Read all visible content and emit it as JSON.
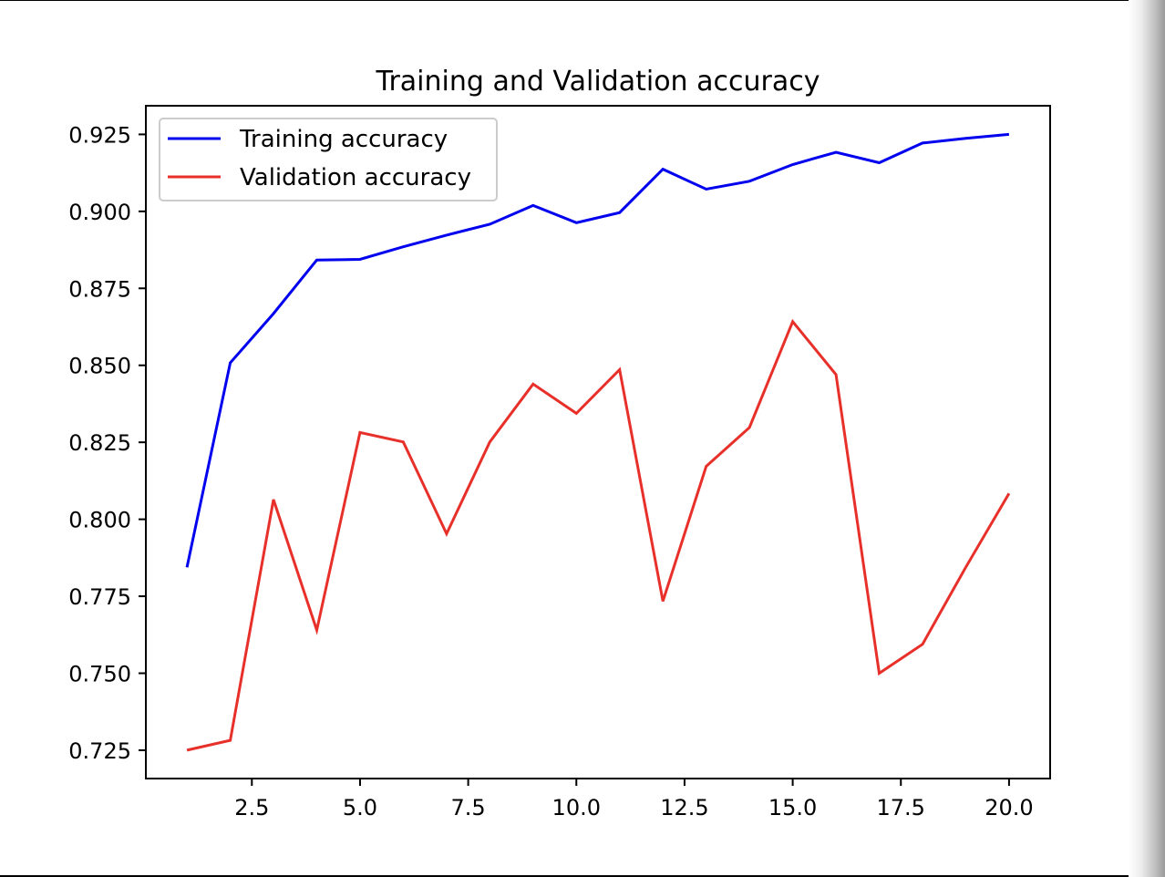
{
  "chart_data": {
    "type": "line",
    "title": "Training and Validation accuracy",
    "xlabel": "",
    "ylabel": "",
    "xlim": [
      0.05,
      20.95
    ],
    "ylim": [
      0.7158,
      0.9343
    ],
    "xticks": [
      2.5,
      5.0,
      7.5,
      10.0,
      12.5,
      15.0,
      17.5,
      20.0
    ],
    "xtick_labels": [
      "2.5",
      "5.0",
      "7.5",
      "10.0",
      "12.5",
      "15.0",
      "17.5",
      "20.0"
    ],
    "yticks": [
      0.725,
      0.75,
      0.775,
      0.8,
      0.825,
      0.85,
      0.875,
      0.9,
      0.925
    ],
    "ytick_labels": [
      "0.725",
      "0.750",
      "0.775",
      "0.800",
      "0.825",
      "0.850",
      "0.875",
      "0.900",
      "0.925"
    ],
    "grid": false,
    "legend_position": "top-left",
    "x": [
      1,
      2,
      3,
      4,
      5,
      6,
      7,
      8,
      9,
      10,
      11,
      12,
      13,
      14,
      15,
      16,
      17,
      18,
      19,
      20
    ],
    "series": [
      {
        "name": "Training accuracy",
        "color": "#0000ee",
        "values": [
          0.7844,
          0.8508,
          0.8668,
          0.8842,
          0.8844,
          0.8885,
          0.8923,
          0.8958,
          0.9019,
          0.8963,
          0.8996,
          0.9137,
          0.9072,
          0.9098,
          0.9152,
          0.9192,
          0.9158,
          0.9222,
          0.9237,
          0.925
        ]
      },
      {
        "name": "Validation accuracy",
        "color": "#e8302a",
        "values": [
          0.725,
          0.7282,
          0.8064,
          0.764,
          0.8282,
          0.8251,
          0.7953,
          0.8251,
          0.8439,
          0.8344,
          0.8486,
          0.7734,
          0.8172,
          0.8298,
          0.8642,
          0.847,
          0.75,
          0.7594,
          0.7844,
          0.8084
        ]
      }
    ]
  }
}
